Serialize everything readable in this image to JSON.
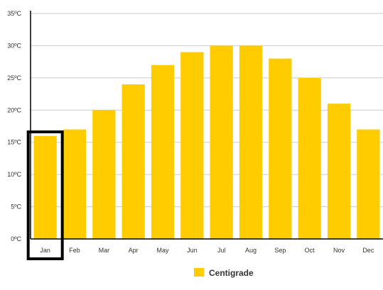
{
  "chart_data": {
    "type": "bar",
    "categories": [
      "Jan",
      "Feb",
      "Mar",
      "Apr",
      "May",
      "Jun",
      "Jul",
      "Aug",
      "Sep",
      "Oct",
      "Nov",
      "Dec"
    ],
    "series": [
      {
        "name": "Centigrade",
        "values": [
          16,
          17,
          20,
          24,
          27,
          29,
          30,
          30,
          28,
          25,
          21,
          17
        ],
        "color": "#ffcc00"
      }
    ],
    "yticks": [
      {
        "value": 0,
        "label": "0ºC"
      },
      {
        "value": 5,
        "label": "5ºC"
      },
      {
        "value": 10,
        "label": "10ºC"
      },
      {
        "value": 15,
        "label": "15ºC"
      },
      {
        "value": 20,
        "label": "20ºC"
      },
      {
        "value": 25,
        "label": "25ºC"
      },
      {
        "value": 30,
        "label": "30ºC"
      },
      {
        "value": 35,
        "label": "35ºC"
      }
    ],
    "ylim": [
      0,
      35
    ],
    "grid": true,
    "legend_position": "bottom-center",
    "highlighted_category": "Jan",
    "highlight_color": "#000000",
    "grid_color": "#cccccc",
    "axis_color": "#000000"
  }
}
